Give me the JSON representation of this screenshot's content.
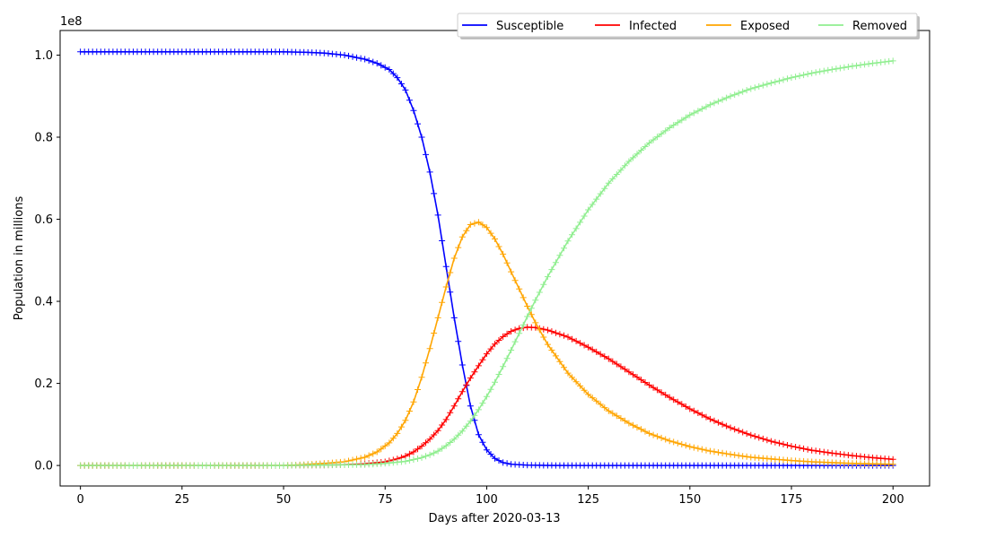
{
  "chart_data": {
    "type": "line",
    "title": "",
    "xlabel": "Days after 2020-03-13",
    "ylabel": "Population in millions",
    "y_offset_label": "1e8",
    "xlim": [
      -5,
      209
    ],
    "ylim": [
      -5000000,
      106000000
    ],
    "x_ticks": [
      0,
      25,
      50,
      75,
      100,
      125,
      150,
      175,
      200
    ],
    "x_tick_labels": [
      "0",
      "25",
      "50",
      "75",
      "100",
      "125",
      "150",
      "175",
      "200"
    ],
    "y_ticks": [
      0,
      20000000,
      40000000,
      60000000,
      80000000,
      100000000
    ],
    "y_tick_labels": [
      "0.0",
      "0.2",
      "0.4",
      "0.6",
      "0.8",
      "1.0"
    ],
    "grid": false,
    "legend_position": "top-right",
    "legend_columns": 4,
    "series": [
      {
        "name": "Susceptible",
        "color": "#0000ff",
        "marker": "+",
        "points": [
          [
            0,
            100800000
          ],
          [
            50,
            100800000
          ],
          [
            55,
            100700000
          ],
          [
            60,
            100500000
          ],
          [
            65,
            100000000
          ],
          [
            70,
            99000000
          ],
          [
            73,
            98000000
          ],
          [
            76,
            96500000
          ],
          [
            78,
            94500000
          ],
          [
            80,
            91500000
          ],
          [
            82,
            86500000
          ],
          [
            84,
            80000000
          ],
          [
            86,
            71500000
          ],
          [
            88,
            61000000
          ],
          [
            90,
            48500000
          ],
          [
            92,
            36000000
          ],
          [
            94,
            24500000
          ],
          [
            96,
            14500000
          ],
          [
            98,
            7500000
          ],
          [
            100,
            3800000
          ],
          [
            102,
            1700000
          ],
          [
            104,
            700000
          ],
          [
            106,
            300000
          ],
          [
            110,
            80000
          ],
          [
            115,
            20000
          ],
          [
            120,
            0
          ],
          [
            200,
            0
          ]
        ]
      },
      {
        "name": "Infected",
        "color": "#ff0000",
        "marker": "+",
        "points": [
          [
            0,
            0
          ],
          [
            50,
            0
          ],
          [
            60,
            100000
          ],
          [
            65,
            200000
          ],
          [
            70,
            400000
          ],
          [
            75,
            900000
          ],
          [
            78,
            1600000
          ],
          [
            80,
            2300000
          ],
          [
            82,
            3300000
          ],
          [
            84,
            4700000
          ],
          [
            86,
            6400000
          ],
          [
            88,
            8500000
          ],
          [
            90,
            11200000
          ],
          [
            92,
            14500000
          ],
          [
            94,
            18000000
          ],
          [
            96,
            21300000
          ],
          [
            98,
            24300000
          ],
          [
            100,
            27200000
          ],
          [
            102,
            29600000
          ],
          [
            104,
            31400000
          ],
          [
            106,
            32700000
          ],
          [
            108,
            33400000
          ],
          [
            110,
            33700000
          ],
          [
            112,
            33600000
          ],
          [
            115,
            33000000
          ],
          [
            120,
            31300000
          ],
          [
            125,
            28800000
          ],
          [
            130,
            26000000
          ],
          [
            135,
            22800000
          ],
          [
            140,
            19600000
          ],
          [
            145,
            16600000
          ],
          [
            150,
            13800000
          ],
          [
            155,
            11300000
          ],
          [
            160,
            9200000
          ],
          [
            165,
            7400000
          ],
          [
            170,
            5900000
          ],
          [
            175,
            4700000
          ],
          [
            180,
            3700000
          ],
          [
            185,
            3000000
          ],
          [
            190,
            2400000
          ],
          [
            195,
            1900000
          ],
          [
            200,
            1500000
          ]
        ]
      },
      {
        "name": "Exposed",
        "color": "#ffa500",
        "marker": "+",
        "points": [
          [
            0,
            0
          ],
          [
            50,
            0
          ],
          [
            55,
            200000
          ],
          [
            60,
            500000
          ],
          [
            65,
            900000
          ],
          [
            70,
            2000000
          ],
          [
            73,
            3300000
          ],
          [
            76,
            5500000
          ],
          [
            78,
            7800000
          ],
          [
            80,
            11000000
          ],
          [
            82,
            15500000
          ],
          [
            84,
            21500000
          ],
          [
            86,
            28500000
          ],
          [
            88,
            36000000
          ],
          [
            90,
            43500000
          ],
          [
            92,
            50500000
          ],
          [
            94,
            55700000
          ],
          [
            96,
            58700000
          ],
          [
            98,
            59300000
          ],
          [
            100,
            58000000
          ],
          [
            102,
            55200000
          ],
          [
            104,
            51500000
          ],
          [
            106,
            47200000
          ],
          [
            108,
            43000000
          ],
          [
            110,
            38800000
          ],
          [
            112,
            34800000
          ],
          [
            115,
            29500000
          ],
          [
            120,
            22500000
          ],
          [
            125,
            17300000
          ],
          [
            130,
            13300000
          ],
          [
            135,
            10300000
          ],
          [
            140,
            7800000
          ],
          [
            145,
            6000000
          ],
          [
            150,
            4600000
          ],
          [
            155,
            3500000
          ],
          [
            160,
            2700000
          ],
          [
            165,
            2000000
          ],
          [
            170,
            1600000
          ],
          [
            175,
            1200000
          ],
          [
            180,
            900000
          ],
          [
            185,
            700000
          ],
          [
            190,
            500000
          ],
          [
            195,
            400000
          ],
          [
            200,
            300000
          ]
        ]
      },
      {
        "name": "Removed",
        "color": "#90ee90",
        "marker": "+",
        "points": [
          [
            0,
            0
          ],
          [
            50,
            0
          ],
          [
            60,
            100000
          ],
          [
            70,
            200000
          ],
          [
            75,
            500000
          ],
          [
            80,
            1000000
          ],
          [
            84,
            1900000
          ],
          [
            86,
            2600000
          ],
          [
            88,
            3500000
          ],
          [
            90,
            4800000
          ],
          [
            92,
            6400000
          ],
          [
            94,
            8400000
          ],
          [
            96,
            10800000
          ],
          [
            98,
            13600000
          ],
          [
            100,
            16800000
          ],
          [
            102,
            20300000
          ],
          [
            104,
            24100000
          ],
          [
            106,
            28100000
          ],
          [
            108,
            32200000
          ],
          [
            110,
            36300000
          ],
          [
            112,
            40300000
          ],
          [
            115,
            46000000
          ],
          [
            120,
            54700000
          ],
          [
            125,
            62300000
          ],
          [
            130,
            68800000
          ],
          [
            135,
            74100000
          ],
          [
            140,
            78600000
          ],
          [
            145,
            82300000
          ],
          [
            150,
            85400000
          ],
          [
            155,
            87900000
          ],
          [
            160,
            90000000
          ],
          [
            165,
            91800000
          ],
          [
            170,
            93200000
          ],
          [
            175,
            94500000
          ],
          [
            180,
            95600000
          ],
          [
            185,
            96500000
          ],
          [
            190,
            97300000
          ],
          [
            195,
            98000000
          ],
          [
            200,
            98600000
          ]
        ]
      }
    ]
  }
}
